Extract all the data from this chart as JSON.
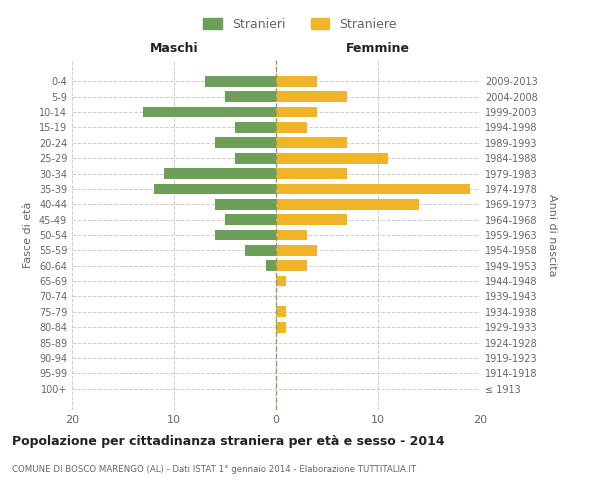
{
  "age_groups": [
    "100+",
    "95-99",
    "90-94",
    "85-89",
    "80-84",
    "75-79",
    "70-74",
    "65-69",
    "60-64",
    "55-59",
    "50-54",
    "45-49",
    "40-44",
    "35-39",
    "30-34",
    "25-29",
    "20-24",
    "15-19",
    "10-14",
    "5-9",
    "0-4"
  ],
  "birth_years": [
    "≤ 1913",
    "1914-1918",
    "1919-1923",
    "1924-1928",
    "1929-1933",
    "1934-1938",
    "1939-1943",
    "1944-1948",
    "1949-1953",
    "1954-1958",
    "1959-1963",
    "1964-1968",
    "1969-1973",
    "1974-1978",
    "1979-1983",
    "1984-1988",
    "1989-1993",
    "1994-1998",
    "1999-2003",
    "2004-2008",
    "2009-2013"
  ],
  "males": [
    0,
    0,
    0,
    0,
    0,
    0,
    0,
    0,
    1,
    3,
    6,
    5,
    6,
    12,
    11,
    4,
    6,
    4,
    13,
    5,
    7
  ],
  "females": [
    0,
    0,
    0,
    0,
    1,
    1,
    0,
    1,
    3,
    4,
    3,
    7,
    14,
    19,
    7,
    11,
    7,
    3,
    4,
    7,
    4
  ],
  "male_color": "#6d9e5a",
  "female_color": "#f0b429",
  "bar_height": 0.7,
  "xlim": [
    -20,
    20
  ],
  "xticks": [
    -20,
    -10,
    0,
    10,
    20
  ],
  "xticklabels": [
    "20",
    "10",
    "0",
    "10",
    "20"
  ],
  "title": "Popolazione per cittadinanza straniera per età e sesso - 2014",
  "subtitle": "COMUNE DI BOSCO MARENGO (AL) - Dati ISTAT 1° gennaio 2014 - Elaborazione TUTTITALIA.IT",
  "ylabel_left": "Fasce di età",
  "ylabel_right": "Anni di nascita",
  "header_left": "Maschi",
  "header_right": "Femmine",
  "legend_male": "Stranieri",
  "legend_female": "Straniere",
  "bg_color": "#ffffff",
  "grid_color": "#cccccc",
  "text_color": "#666666",
  "title_color": "#222222",
  "subtitle_color": "#666666"
}
